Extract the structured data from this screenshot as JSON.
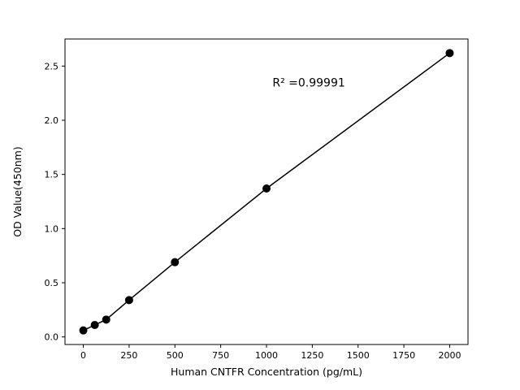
{
  "chart_data": {
    "type": "scatter",
    "title": "",
    "xlabel": "Human CNTFR Concentration (pg/mL)",
    "ylabel": "OD Value(450nm)",
    "x": [
      0,
      62.5,
      125,
      250,
      500,
      1000,
      2000
    ],
    "y": [
      0.06,
      0.11,
      0.16,
      0.34,
      0.69,
      1.37,
      2.62
    ],
    "xlim": [
      -100,
      2100
    ],
    "ylim": [
      -0.07,
      2.75
    ],
    "xticks": [
      0,
      250,
      500,
      750,
      1000,
      1250,
      1500,
      1750,
      2000
    ],
    "xtick_labels": [
      "0",
      "250",
      "500",
      "750",
      "1000",
      "1250",
      "1500",
      "1750",
      "2000"
    ],
    "yticks": [
      0.0,
      0.5,
      1.0,
      1.5,
      2.0,
      2.5
    ],
    "ytick_labels": [
      "0.0",
      "0.5",
      "1.0",
      "1.5",
      "2.0",
      "2.5"
    ],
    "grid": false,
    "legend": null,
    "has_line": true,
    "line_color": "#000000",
    "marker_color": "#000000",
    "annotation": {
      "text": "R² =0.99991",
      "fx": 0.605,
      "fy": 0.155
    }
  }
}
